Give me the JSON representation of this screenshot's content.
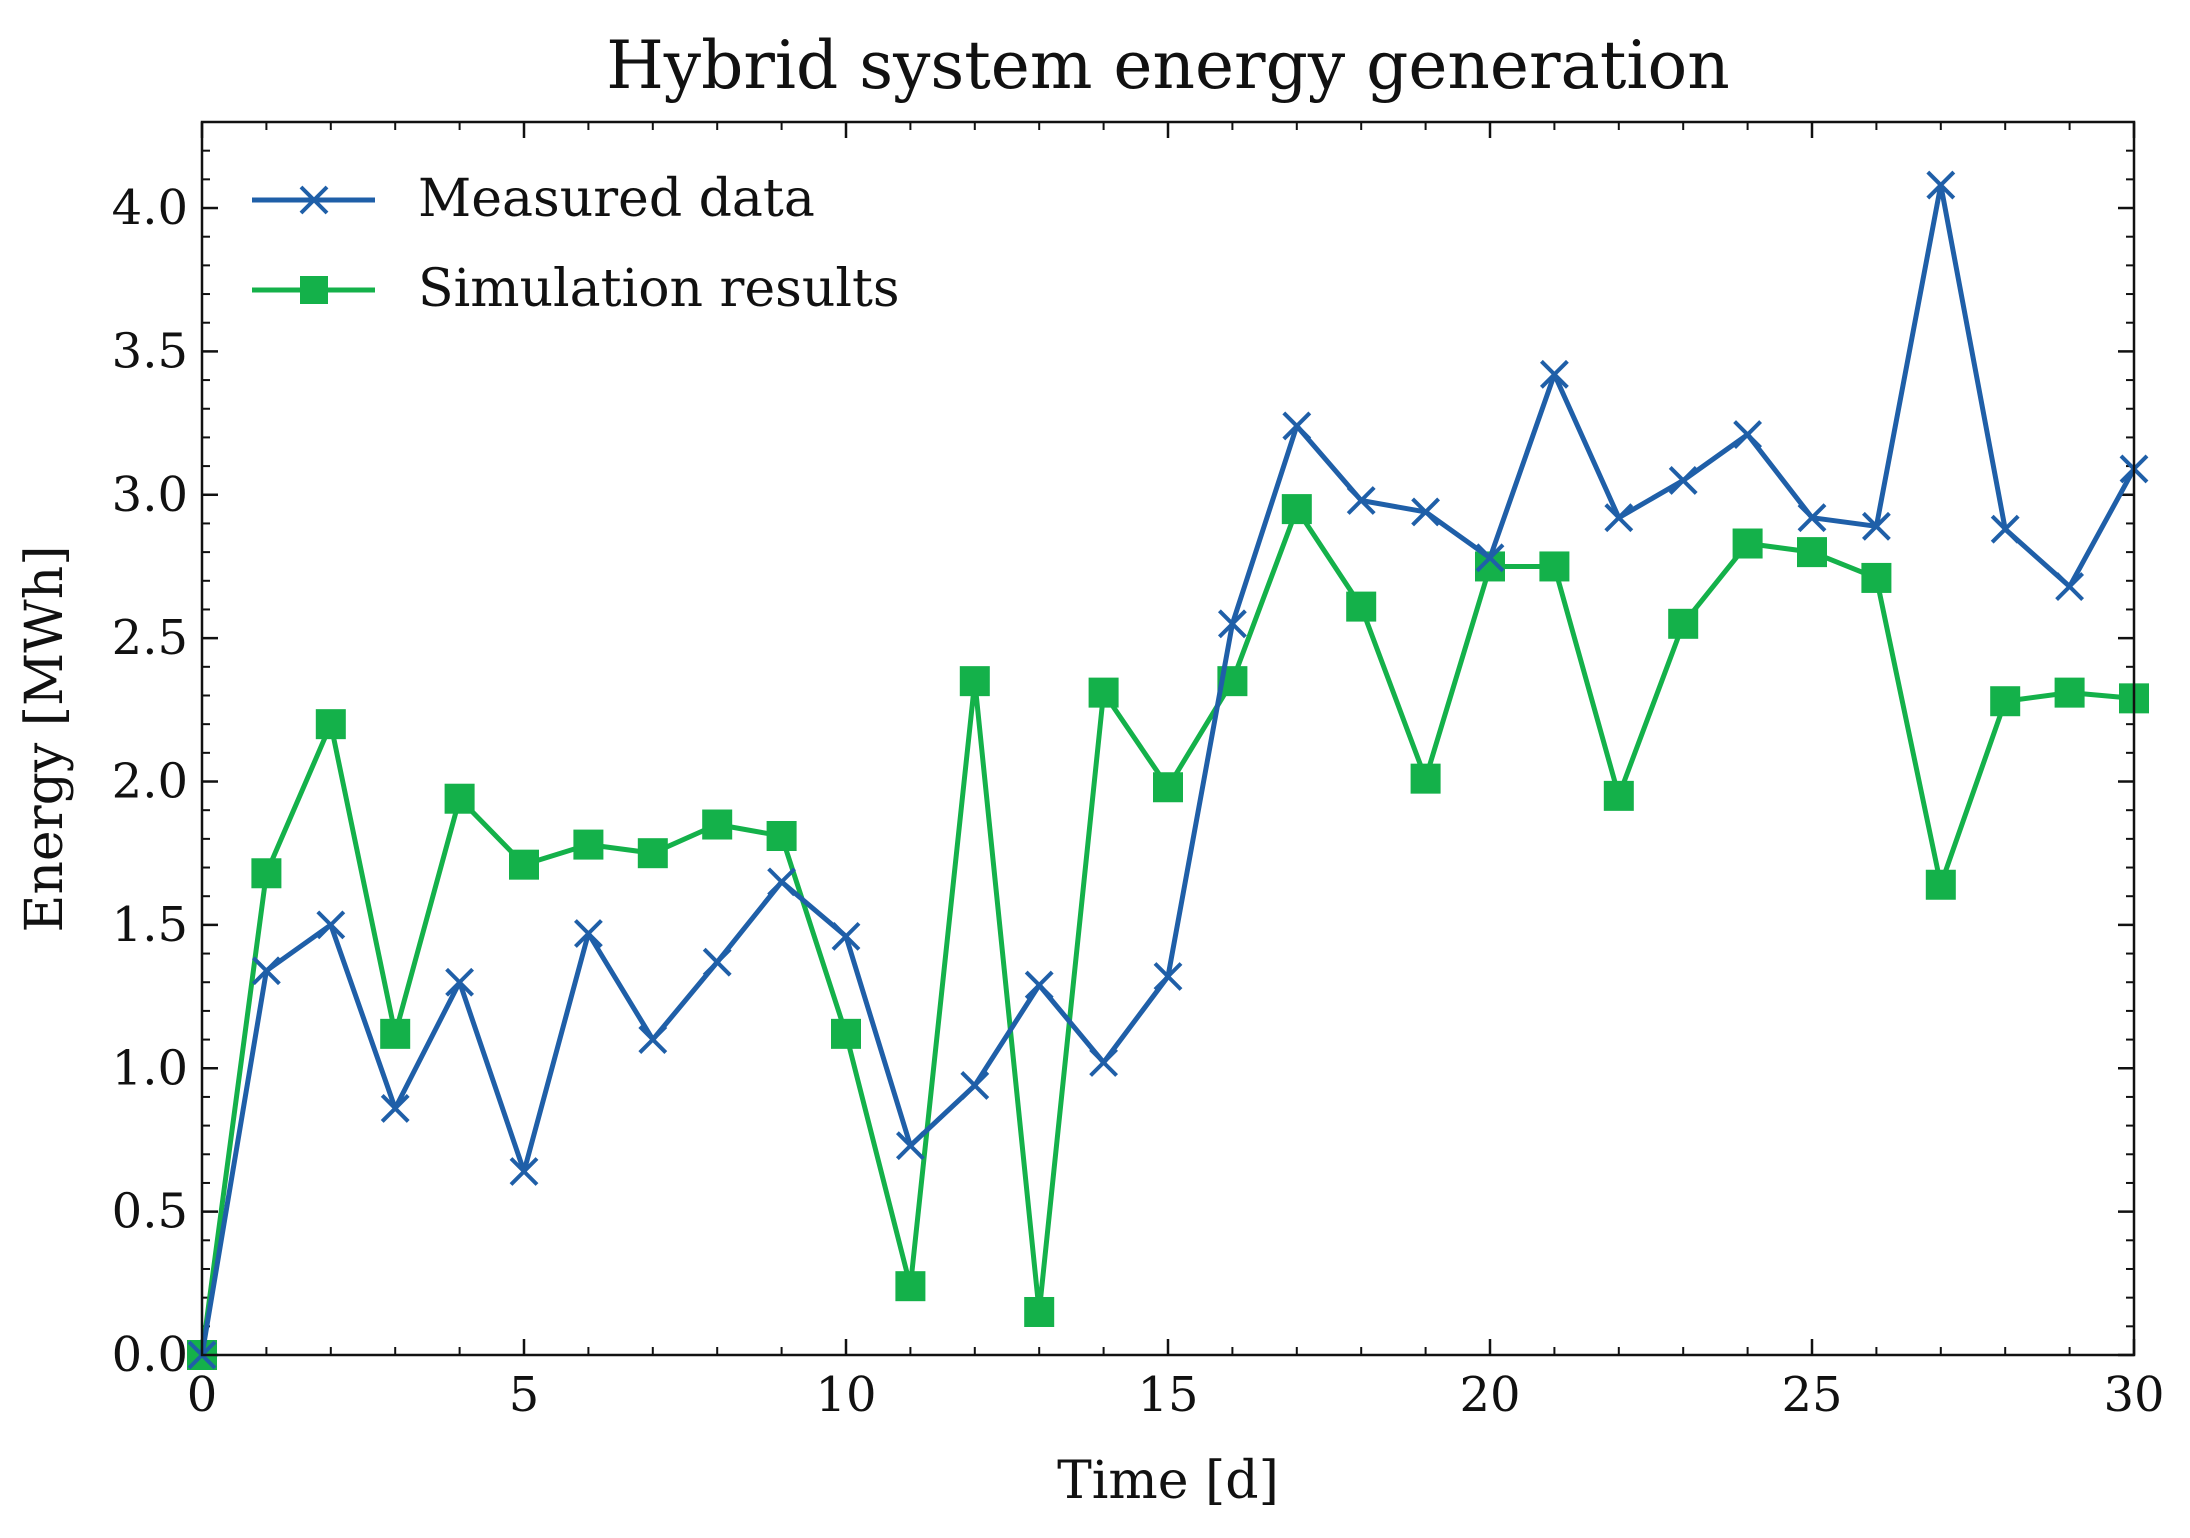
{
  "chart_data": {
    "type": "line",
    "title": "Hybrid system energy generation",
    "xlabel": "Time [d]",
    "ylabel": "Energy [MWh]",
    "xlim": [
      0,
      30
    ],
    "ylim": [
      0,
      4.3
    ],
    "xticks": [
      0,
      5,
      10,
      15,
      20,
      25,
      30
    ],
    "xtick_labels": [
      "0",
      "5",
      "10",
      "15",
      "20",
      "25",
      "30"
    ],
    "yticks": [
      0,
      0.5,
      1.0,
      1.5,
      2.0,
      2.5,
      3.0,
      3.5,
      4.0
    ],
    "ytick_labels": [
      "0.0",
      "0.5",
      "1.0",
      "1.5",
      "2.0",
      "2.5",
      "3.0",
      "3.5",
      "4.0"
    ],
    "grid": false,
    "legend_position": "top-left",
    "x": [
      0,
      1,
      2,
      3,
      4,
      5,
      6,
      7,
      8,
      9,
      10,
      11,
      12,
      13,
      14,
      15,
      16,
      17,
      18,
      19,
      20,
      21,
      22,
      23,
      24,
      25,
      26,
      27,
      28,
      29,
      30
    ],
    "series": [
      {
        "name": "Measured data",
        "color": "#1f5fa8",
        "marker": "x",
        "values": [
          0.0,
          1.34,
          1.5,
          0.86,
          1.3,
          0.64,
          1.47,
          1.1,
          1.37,
          1.65,
          1.46,
          0.73,
          0.94,
          1.29,
          1.02,
          1.32,
          2.55,
          3.24,
          2.98,
          2.94,
          2.78,
          3.42,
          2.92,
          3.05,
          3.21,
          2.92,
          2.89,
          4.08,
          2.88,
          2.68,
          3.09
        ]
      },
      {
        "name": "Simulation results",
        "color": "#14b14a",
        "marker": "square",
        "values": [
          0.0,
          1.68,
          2.2,
          1.12,
          1.94,
          1.71,
          1.78,
          1.75,
          1.85,
          1.81,
          1.12,
          0.24,
          2.35,
          0.15,
          2.31,
          1.98,
          2.35,
          2.95,
          2.61,
          2.01,
          2.75,
          2.75,
          1.95,
          2.55,
          2.83,
          2.8,
          2.71,
          1.64,
          2.28,
          2.31,
          2.29
        ]
      }
    ]
  }
}
